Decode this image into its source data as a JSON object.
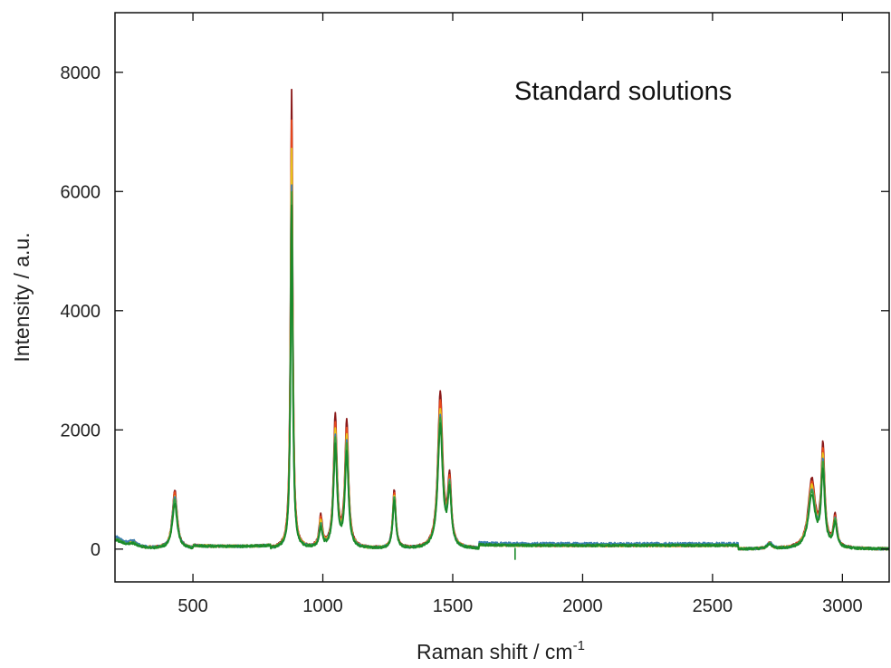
{
  "chart_data": {
    "type": "line",
    "title": "",
    "xlabel": "Raman shift / cm",
    "xlabel_superscript": "-1",
    "ylabel": "Intensity / a.u.",
    "annotation": "Standard solutions",
    "xlim": [
      200,
      3180
    ],
    "ylim": [
      -550,
      9000
    ],
    "x_ticks": [
      500,
      1000,
      1500,
      2000,
      2500,
      3000
    ],
    "y_ticks": [
      0,
      2000,
      4000,
      6000,
      8000
    ],
    "x_tick_labels": [
      "500",
      "1000",
      "1500",
      "2000",
      "2500",
      "3000"
    ],
    "y_tick_labels": [
      "0",
      "2000",
      "4000",
      "6000",
      "8000"
    ],
    "grid": false,
    "legend": "none",
    "colors": [
      "#8b1a1a",
      "#e8481c",
      "#e6c21a",
      "#3c7fb0",
      "#3aa03a",
      "#1a8a2a"
    ],
    "peaks_cm1": [
      430,
      880,
      990,
      1048,
      1092,
      1275,
      1452,
      1488,
      2720,
      2880,
      2925,
      2970
    ],
    "series": [
      {
        "values": [
          180,
          80,
          980,
          7700,
          520,
          2200,
          2120,
          990,
          2600,
          1100,
          100,
          1150,
          1660,
          520
        ]
      },
      {
        "values": [
          170,
          75,
          940,
          7200,
          480,
          2050,
          1980,
          930,
          2450,
          1040,
          95,
          1080,
          1560,
          490
        ]
      },
      {
        "values": [
          160,
          70,
          900,
          6700,
          440,
          1950,
          1880,
          900,
          2300,
          990,
          90,
          1020,
          1480,
          470
        ]
      },
      {
        "values": [
          200,
          90,
          870,
          6100,
          390,
          1850,
          1750,
          880,
          2200,
          960,
          110,
          960,
          1400,
          450
        ]
      },
      {
        "values": [
          150,
          65,
          820,
          6000,
          360,
          1800,
          1700,
          860,
          2150,
          940,
          85,
          930,
          1350,
          440
        ]
      },
      {
        "values": [
          140,
          60,
          760,
          5750,
          320,
          1700,
          1580,
          820,
          2050,
          900,
          80,
          870,
          1250,
          410
        ]
      }
    ]
  }
}
